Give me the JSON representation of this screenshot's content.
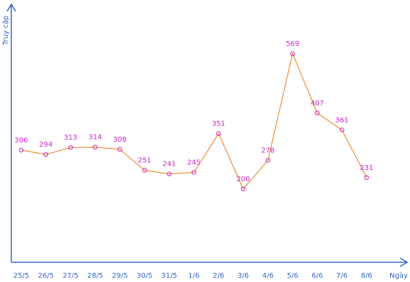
{
  "chart_data": {
    "type": "line",
    "xlabel": "Ngày",
    "ylabel": "Truy cập",
    "categories": [
      "25/5",
      "26/5",
      "27/5",
      "28/5",
      "29/5",
      "30/5",
      "31/5",
      "1/6",
      "2/6",
      "3/6",
      "4/6",
      "5/6",
      "6/6",
      "7/6",
      "8/6"
    ],
    "series": [
      {
        "values": [
          306,
          294,
          313,
          314,
          308,
          251,
          241,
          245,
          351,
          200,
          278,
          569,
          407,
          361,
          231
        ]
      }
    ],
    "ylim": [
      0,
      700
    ],
    "grid": false,
    "colors": {
      "axis": "#3366cc",
      "line": "#ee7711",
      "marker": "#cc22cc",
      "label": "#cc22cc"
    }
  }
}
